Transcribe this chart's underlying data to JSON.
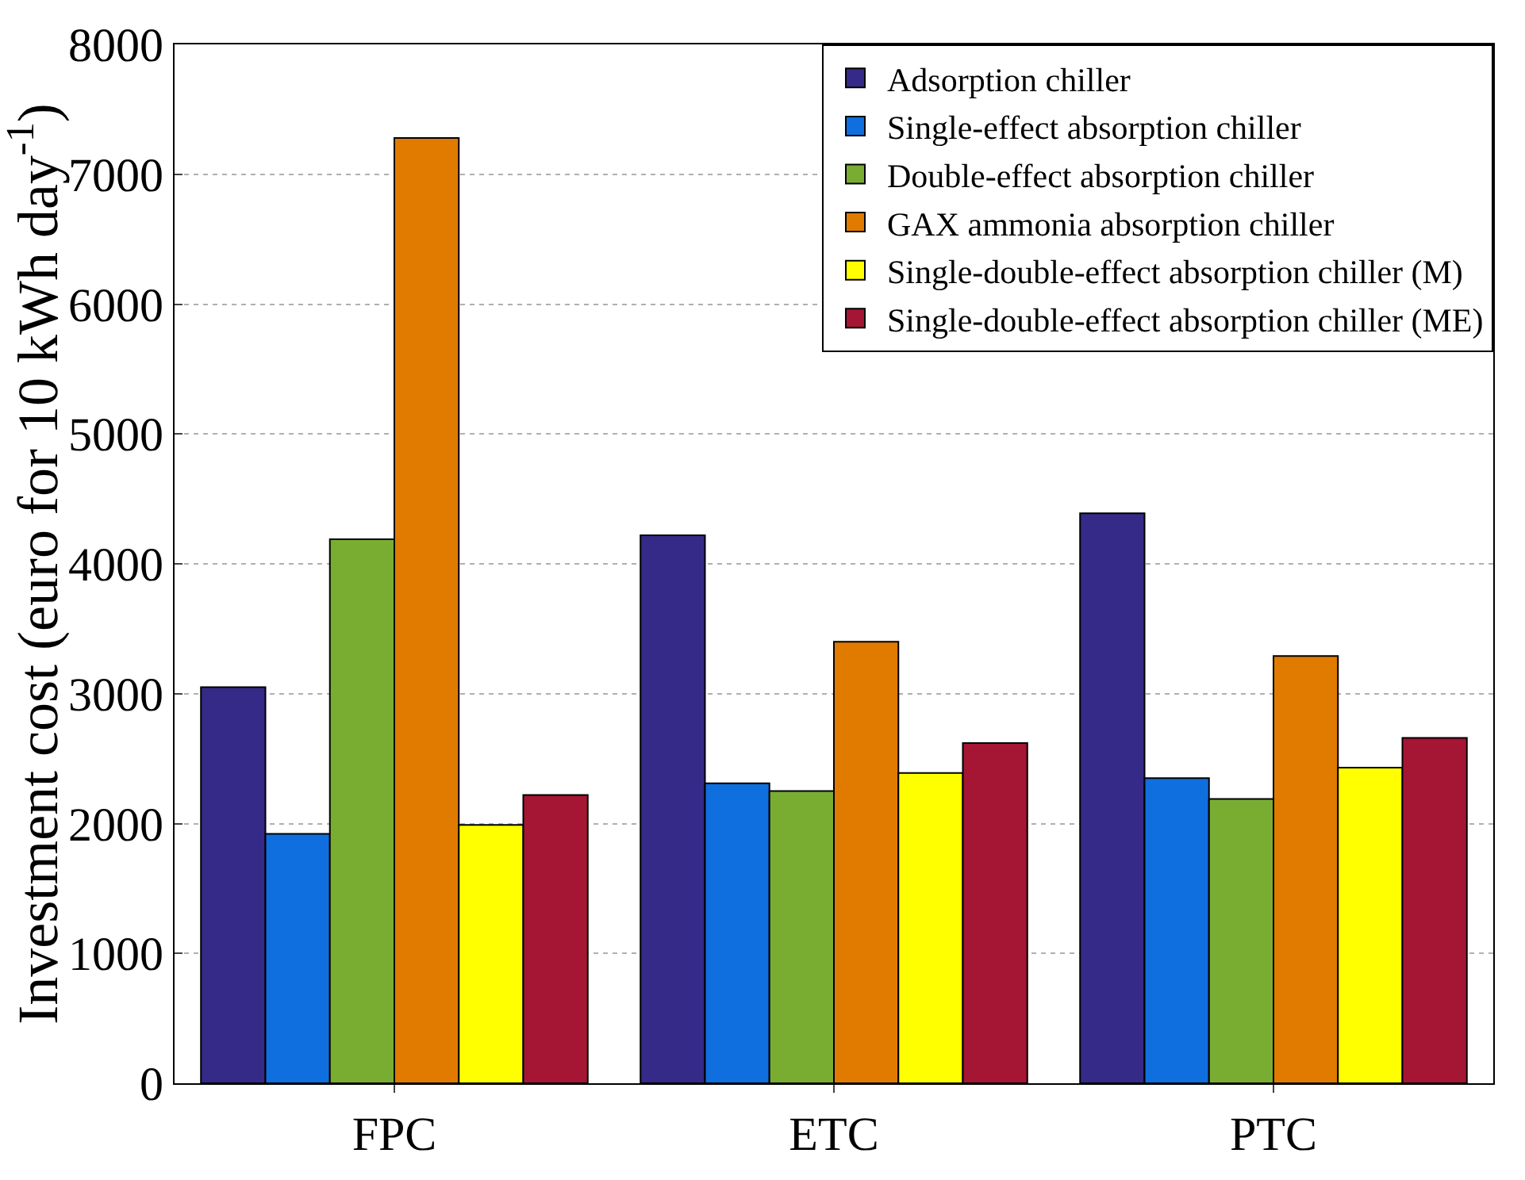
{
  "chart_data": {
    "type": "bar",
    "ylabel": "Investment cost (euro for 10 kWh day$^{-1}$)",
    "categories": [
      "FPC",
      "ETC",
      "PTC"
    ],
    "series": [
      {
        "name": "Adsorption chiller",
        "color": "#352a87",
        "values": [
          3050,
          4220,
          4390
        ]
      },
      {
        "name": "Single-effect absorption chiller",
        "color": "#0f6fdf",
        "values": [
          1920,
          2310,
          2350
        ]
      },
      {
        "name": "Double-effect absorption chiller",
        "color": "#79ad32",
        "values": [
          4190,
          2250,
          2190
        ]
      },
      {
        "name": "GAX ammonia absorption chiller",
        "color": "#e07b00",
        "values": [
          7280,
          3400,
          3290
        ]
      },
      {
        "name": "Single-double-effect absorption chiller (M)",
        "color": "#ffff00",
        "values": [
          1990,
          2390,
          2430
        ]
      },
      {
        "name": "Single-double-effect absorption chiller (ME)",
        "color": "#a51634",
        "values": [
          2220,
          2620,
          2660
        ]
      }
    ],
    "ylim": [
      0,
      8000
    ],
    "yticks": [
      0,
      1000,
      2000,
      3000,
      4000,
      5000,
      6000,
      7000,
      8000
    ],
    "grid": "y",
    "legend": "top right"
  }
}
